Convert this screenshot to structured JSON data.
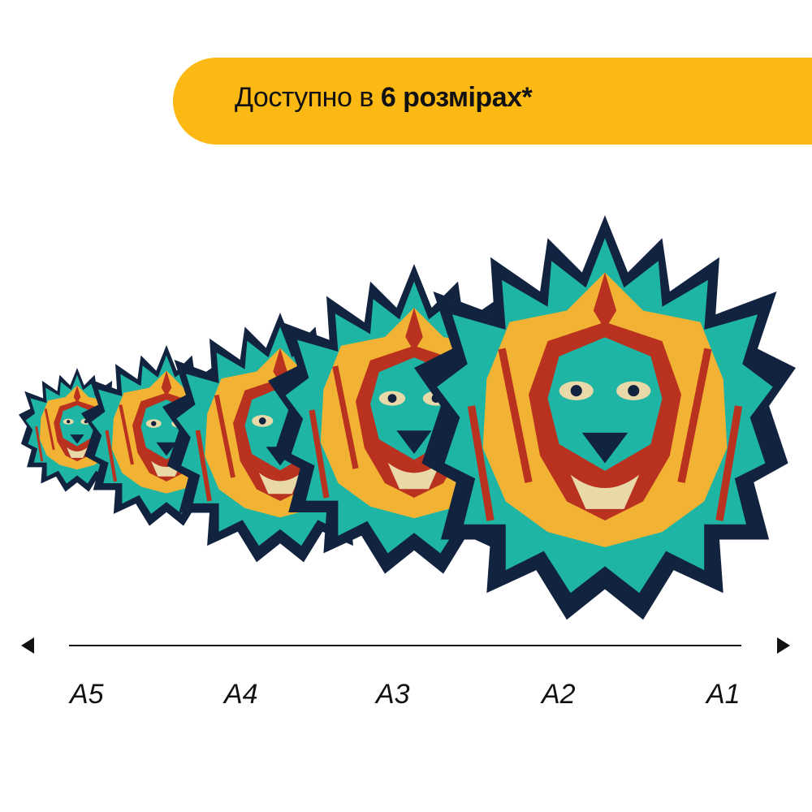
{
  "banner": {
    "text_regular": "Доступно в ",
    "text_bold": "6 розмірах*",
    "color": "#fdb913"
  },
  "illustration": {
    "subject": "lion-head",
    "colors": [
      "#1fb5a5",
      "#12233f",
      "#f2b233",
      "#b8321f",
      "#e9d9a8"
    ],
    "count": 5
  },
  "scale": {
    "labels": [
      "A5",
      "A4",
      "A3",
      "A2",
      "A1"
    ]
  }
}
